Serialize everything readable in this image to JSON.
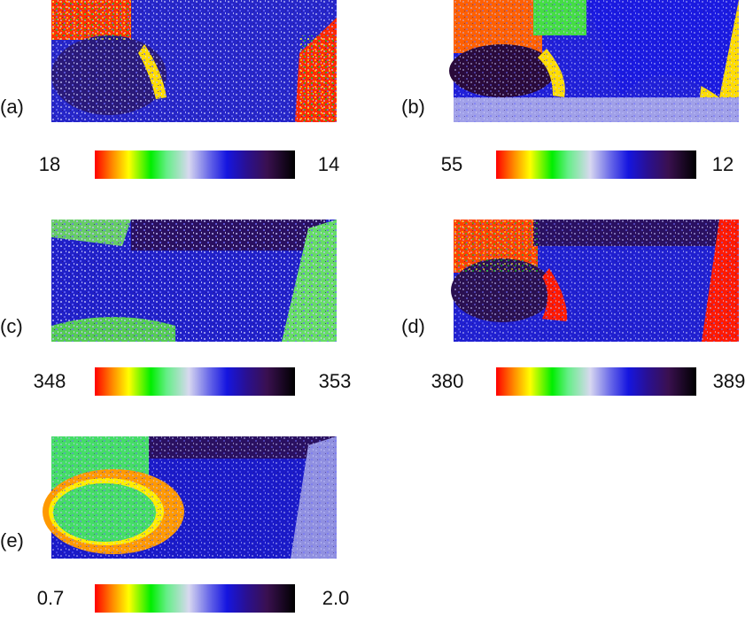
{
  "panels": [
    {
      "label": "(a)",
      "min": "18",
      "max": "14"
    },
    {
      "label": "(b)",
      "min": "55",
      "max": "12"
    },
    {
      "label": "(c)",
      "min": "348",
      "max": "353"
    },
    {
      "label": "(d)",
      "min": "380",
      "max": "389"
    },
    {
      "label": "(e)",
      "min": "0.7",
      "max": "2.0"
    }
  ]
}
